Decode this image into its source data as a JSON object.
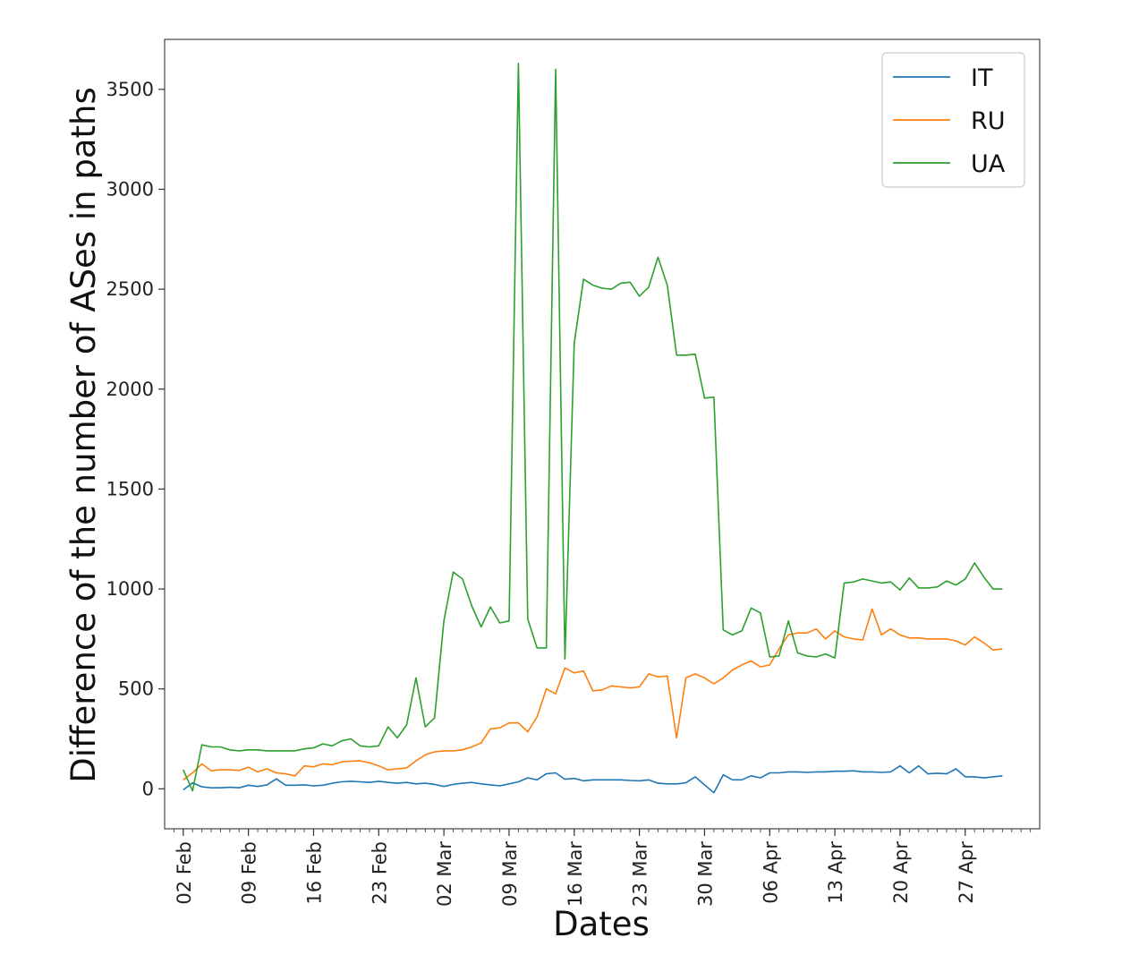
{
  "chart_data": {
    "type": "line",
    "xlabel": "Dates",
    "ylabel": "Difference of the number of ASes in paths",
    "ylim": [
      -200,
      3750
    ],
    "yticks": [
      0,
      500,
      1000,
      1500,
      2000,
      2500,
      3000,
      3500
    ],
    "xlim": [
      "2022-01-31",
      "2022-05-05"
    ],
    "xticks": [
      {
        "date": "2022-02-02",
        "label": "02 Feb"
      },
      {
        "date": "2022-02-09",
        "label": "09 Feb"
      },
      {
        "date": "2022-02-16",
        "label": "16 Feb"
      },
      {
        "date": "2022-02-23",
        "label": "23 Feb"
      },
      {
        "date": "2022-03-02",
        "label": "02 Mar"
      },
      {
        "date": "2022-03-09",
        "label": "09 Mar"
      },
      {
        "date": "2022-03-16",
        "label": "16 Mar"
      },
      {
        "date": "2022-03-23",
        "label": "23 Mar"
      },
      {
        "date": "2022-03-30",
        "label": "30 Mar"
      },
      {
        "date": "2022-04-06",
        "label": "06 Apr"
      },
      {
        "date": "2022-04-13",
        "label": "13 Apr"
      },
      {
        "date": "2022-04-20",
        "label": "20 Apr"
      },
      {
        "date": "2022-04-27",
        "label": "27 Apr"
      }
    ],
    "legend": "upper-right",
    "grid": false,
    "x": [
      "2022-02-02",
      "2022-02-03",
      "2022-02-04",
      "2022-02-05",
      "2022-02-06",
      "2022-02-07",
      "2022-02-08",
      "2022-02-09",
      "2022-02-10",
      "2022-02-11",
      "2022-02-12",
      "2022-02-13",
      "2022-02-14",
      "2022-02-15",
      "2022-02-16",
      "2022-02-17",
      "2022-02-18",
      "2022-02-19",
      "2022-02-20",
      "2022-02-21",
      "2022-02-22",
      "2022-02-23",
      "2022-02-24",
      "2022-02-25",
      "2022-02-26",
      "2022-02-27",
      "2022-02-28",
      "2022-03-01",
      "2022-03-02",
      "2022-03-03",
      "2022-03-04",
      "2022-03-05",
      "2022-03-06",
      "2022-03-07",
      "2022-03-08",
      "2022-03-09",
      "2022-03-10",
      "2022-03-11",
      "2022-03-12",
      "2022-03-13",
      "2022-03-14",
      "2022-03-15",
      "2022-03-16",
      "2022-03-17",
      "2022-03-18",
      "2022-03-19",
      "2022-03-20",
      "2022-03-21",
      "2022-03-22",
      "2022-03-23",
      "2022-03-24",
      "2022-03-25",
      "2022-03-26",
      "2022-03-27",
      "2022-03-28",
      "2022-03-29",
      "2022-03-30",
      "2022-03-31",
      "2022-04-01",
      "2022-04-02",
      "2022-04-03",
      "2022-04-04",
      "2022-04-05",
      "2022-04-06",
      "2022-04-07",
      "2022-04-08",
      "2022-04-09",
      "2022-04-10",
      "2022-04-11",
      "2022-04-12",
      "2022-04-13",
      "2022-04-14",
      "2022-04-15",
      "2022-04-16",
      "2022-04-17",
      "2022-04-18",
      "2022-04-19",
      "2022-04-20",
      "2022-04-21",
      "2022-04-22",
      "2022-04-23",
      "2022-04-24",
      "2022-04-25",
      "2022-04-26",
      "2022-04-27",
      "2022-04-28",
      "2022-04-29",
      "2022-04-30",
      "2022-05-01"
    ],
    "series": [
      {
        "name": "IT",
        "color": "#1f77b4",
        "values": [
          -5,
          30,
          10,
          5,
          5,
          8,
          5,
          18,
          12,
          20,
          50,
          18,
          18,
          20,
          15,
          18,
          28,
          35,
          38,
          35,
          32,
          38,
          32,
          28,
          32,
          25,
          28,
          22,
          12,
          22,
          28,
          32,
          25,
          20,
          15,
          25,
          35,
          55,
          45,
          75,
          80,
          48,
          52,
          40,
          45,
          45,
          45,
          45,
          42,
          40,
          45,
          28,
          25,
          25,
          30,
          60,
          20,
          -20,
          70,
          45,
          45,
          65,
          55,
          80,
          80,
          85,
          85,
          82,
          85,
          85,
          88,
          88,
          90,
          85,
          85,
          82,
          85,
          115,
          80,
          115,
          75,
          78,
          75,
          100,
          60,
          60,
          55,
          60,
          65
        ]
      },
      {
        "name": "RU",
        "color": "#ff7f0e",
        "values": [
          45,
          80,
          125,
          90,
          95,
          95,
          92,
          108,
          85,
          100,
          80,
          75,
          65,
          115,
          110,
          125,
          120,
          135,
          138,
          140,
          130,
          115,
          95,
          100,
          105,
          140,
          170,
          185,
          190,
          190,
          195,
          210,
          230,
          300,
          305,
          330,
          330,
          285,
          360,
          500,
          475,
          605,
          580,
          590,
          490,
          495,
          515,
          510,
          505,
          510,
          575,
          560,
          565,
          255,
          555,
          575,
          555,
          525,
          555,
          595,
          620,
          640,
          610,
          620,
          700,
          770,
          780,
          780,
          800,
          750,
          790,
          760,
          750,
          745,
          900,
          770,
          800,
          770,
          755,
          755,
          750,
          750,
          750,
          740,
          720,
          760,
          730,
          695,
          700
        ]
      },
      {
        "name": "UA",
        "color": "#2ca02c",
        "values": [
          95,
          -10,
          220,
          210,
          210,
          195,
          190,
          195,
          195,
          190,
          190,
          190,
          190,
          200,
          205,
          225,
          215,
          240,
          250,
          215,
          210,
          215,
          310,
          255,
          320,
          555,
          310,
          355,
          840,
          1085,
          1050,
          915,
          810,
          910,
          830,
          840,
          3630,
          850,
          705,
          705,
          3600,
          650,
          2230,
          2550,
          2520,
          2505,
          2500,
          2530,
          2535,
          2465,
          2510,
          2660,
          2520,
          2170,
          2170,
          2175,
          1955,
          1960,
          795,
          770,
          790,
          905,
          880,
          660,
          665,
          840,
          680,
          665,
          660,
          675,
          655,
          1030,
          1035,
          1050,
          1040,
          1030,
          1035,
          995,
          1055,
          1005,
          1005,
          1010,
          1040,
          1020,
          1050,
          1130,
          1060,
          1000,
          1000
        ]
      }
    ]
  }
}
